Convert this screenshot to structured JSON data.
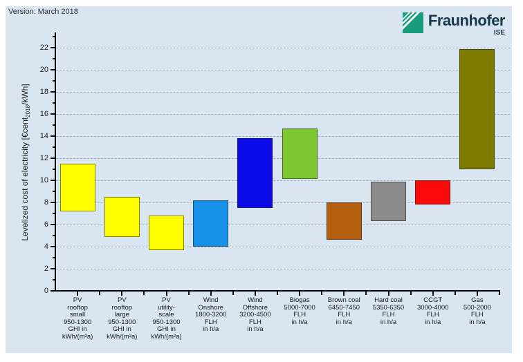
{
  "version_label": "Version: March 2018",
  "logo": {
    "brand": "Fraunhofer",
    "unit": "ISE",
    "icon": "fraunhofer-green-striped-square",
    "green": "#179c7d",
    "text_color": "#16394a"
  },
  "colors": {
    "panel_background": "#d9e6f2",
    "page_background": "#ffffff",
    "gridline": "#a2acb6",
    "axis": "#000000",
    "text": "#1a1a1a",
    "bar_border": "rgba(30,30,10,0.55)"
  },
  "chart_data": {
    "type": "bar",
    "subtype": "floating-range-columns",
    "title": "",
    "xlabel": "",
    "ylabel": "Levelized cost of electricity [€cent2018/kWh]",
    "ylabel_parts": {
      "prefix": "Levelized cost of electricity [€cent",
      "subscript": "2018",
      "suffix": "/kWh]"
    },
    "ylim": [
      0,
      23.4
    ],
    "ytick_interval": 2,
    "ytick_labels": [
      "0",
      "2",
      "4",
      "6",
      "8",
      "10",
      "12",
      "14",
      "16",
      "18",
      "20",
      "22"
    ],
    "grid": "horizontal-dashed",
    "legend": "none",
    "categories": [
      {
        "label_lines": [
          "PV",
          "rooftop",
          "small",
          "950-1300",
          "GHI in",
          "kWh/(m²a)"
        ],
        "low": 7.2,
        "high": 11.5,
        "fill": "#ffff00"
      },
      {
        "label_lines": [
          "PV",
          "rooftop",
          "large",
          "950-1300",
          "GHI in",
          "kWh/(m²a)"
        ],
        "low": 4.9,
        "high": 8.5,
        "fill": "#ffff00"
      },
      {
        "label_lines": [
          "PV",
          "utility-",
          "scale",
          "950-1300",
          "GHI in",
          "kWh/(m²a)"
        ],
        "low": 3.7,
        "high": 6.8,
        "fill": "#ffff00"
      },
      {
        "label_lines": [
          "Wind",
          "Onshore",
          "1800-3200",
          "FLH",
          "in h/a"
        ],
        "low": 4.0,
        "high": 8.2,
        "fill": "#1791e8"
      },
      {
        "label_lines": [
          "Wind",
          "Offshore",
          "3200-4500",
          "FLH",
          "in h/a"
        ],
        "low": 7.5,
        "high": 13.8,
        "fill": "#0a0ae6"
      },
      {
        "label_lines": [
          "Biogas",
          "5000-7000",
          "FLH",
          "in h/a"
        ],
        "low": 10.1,
        "high": 14.7,
        "fill": "#7dc832"
      },
      {
        "label_lines": [
          "Brown coal",
          "6450-7450",
          "FLH",
          "in h/a"
        ],
        "low": 4.6,
        "high": 8.0,
        "fill": "#b35f0f"
      },
      {
        "label_lines": [
          "Hard coal",
          "5350-6350",
          "FLH",
          "in h/a"
        ],
        "low": 6.3,
        "high": 9.9,
        "fill": "#8c8c8c"
      },
      {
        "label_lines": [
          "CCGT",
          "3000-4000",
          "FLH",
          "in h/a"
        ],
        "low": 7.8,
        "high": 10.0,
        "fill": "#fa0a0a"
      },
      {
        "label_lines": [
          "Gas",
          "500-2000",
          "FLH",
          "in h/a"
        ],
        "low": 11.0,
        "high": 21.9,
        "fill": "#7d7a00"
      }
    ]
  }
}
